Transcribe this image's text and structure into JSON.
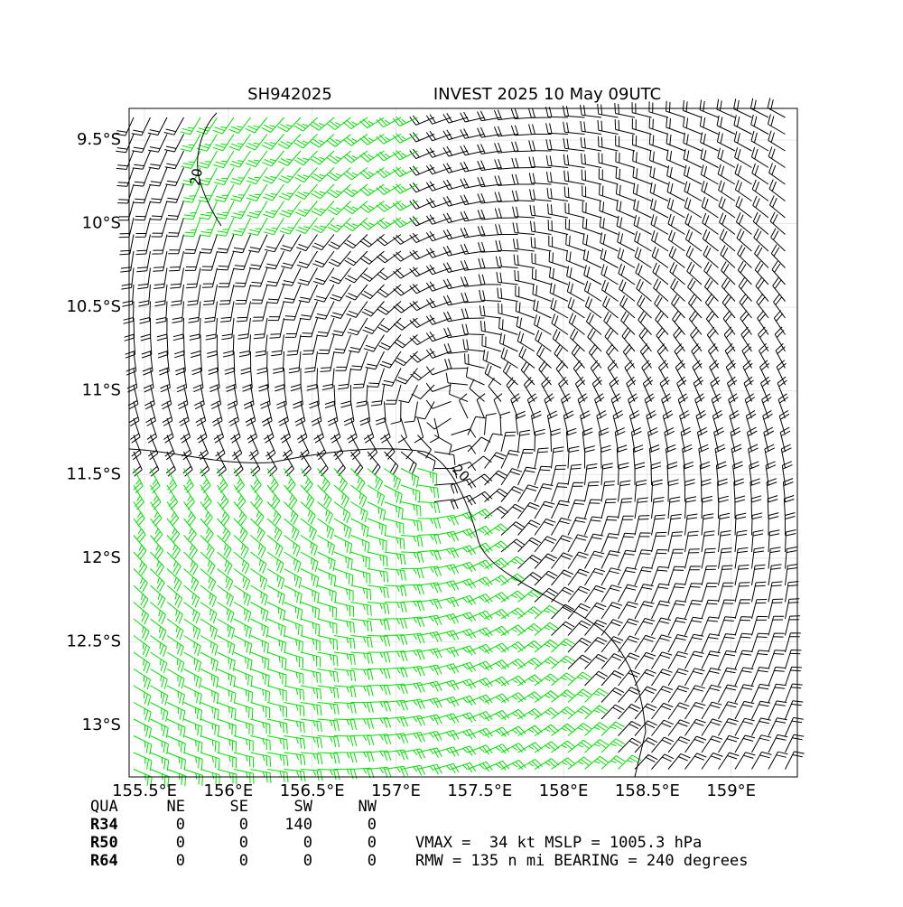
{
  "title_left": "SH942025",
  "title_right": "INVEST 2025 10 May 09UTC",
  "axes": {
    "xlim": [
      155.408,
      159.395
    ],
    "ylim": [
      -13.308,
      -9.311
    ],
    "xticks": [
      {
        "value": 155.5,
        "label": "155.5°E"
      },
      {
        "value": 156,
        "label": "156°E"
      },
      {
        "value": 156.5,
        "label": "156.5°E"
      },
      {
        "value": 157,
        "label": "157°E"
      },
      {
        "value": 157.5,
        "label": "157.5°E"
      },
      {
        "value": 158,
        "label": "158°E"
      },
      {
        "value": 158.5,
        "label": "158.5°E"
      },
      {
        "value": 159,
        "label": "159°E"
      }
    ],
    "yticks": [
      {
        "value": -9.5,
        "label": "9.5°S"
      },
      {
        "value": -10,
        "label": "10°S"
      },
      {
        "value": -10.5,
        "label": "10.5°S"
      },
      {
        "value": -11,
        "label": "11°S"
      },
      {
        "value": -11.5,
        "label": "11.5°S"
      },
      {
        "value": -12,
        "label": "12°S"
      },
      {
        "value": -12.5,
        "label": "12.5°S"
      },
      {
        "value": -13,
        "label": "13°S"
      }
    ]
  },
  "contour_labels": [
    "20",
    "20"
  ],
  "radii_table": {
    "header": [
      "QUA",
      "NE",
      "SE",
      "SW",
      "NW"
    ],
    "rows": [
      [
        "R34",
        "0",
        "0",
        "140",
        "0"
      ],
      [
        "R50",
        "0",
        "0",
        "0",
        "0"
      ],
      [
        "R64",
        "0",
        "0",
        "0",
        "0"
      ]
    ]
  },
  "info": [
    "VMAX =  34 kt MSLP = 1005.3 hPa",
    "RMW = 135 n mi BEARING = 240 degrees"
  ]
}
